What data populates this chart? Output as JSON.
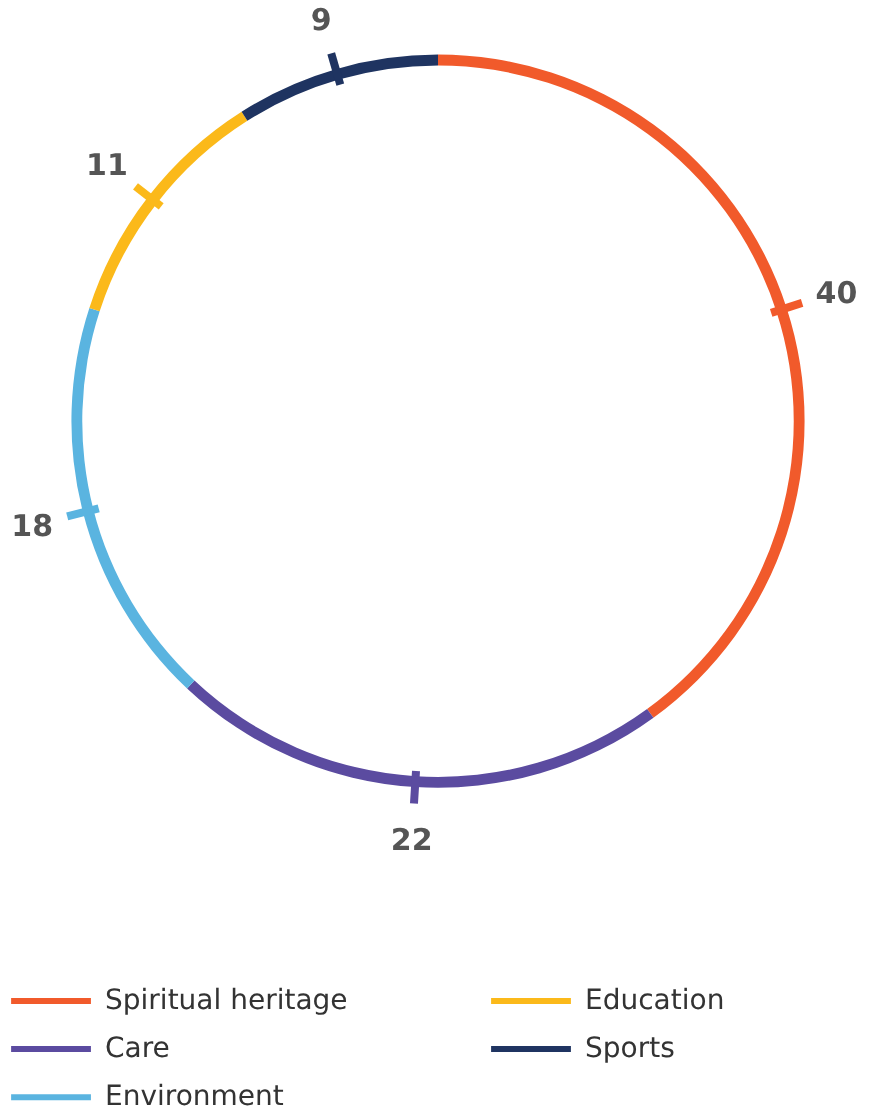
{
  "chart_data": {
    "type": "donut",
    "categories": [
      "Spiritual heritage",
      "Care",
      "Environment",
      "Education",
      "Sports"
    ],
    "values": [
      40,
      22,
      18,
      11,
      9
    ],
    "colors": [
      "#f15a2b",
      "#5b4ba0",
      "#5ab4e0",
      "#fbb91a",
      "#1f3461"
    ],
    "data_labels": true,
    "legend": "bottom"
  }
}
